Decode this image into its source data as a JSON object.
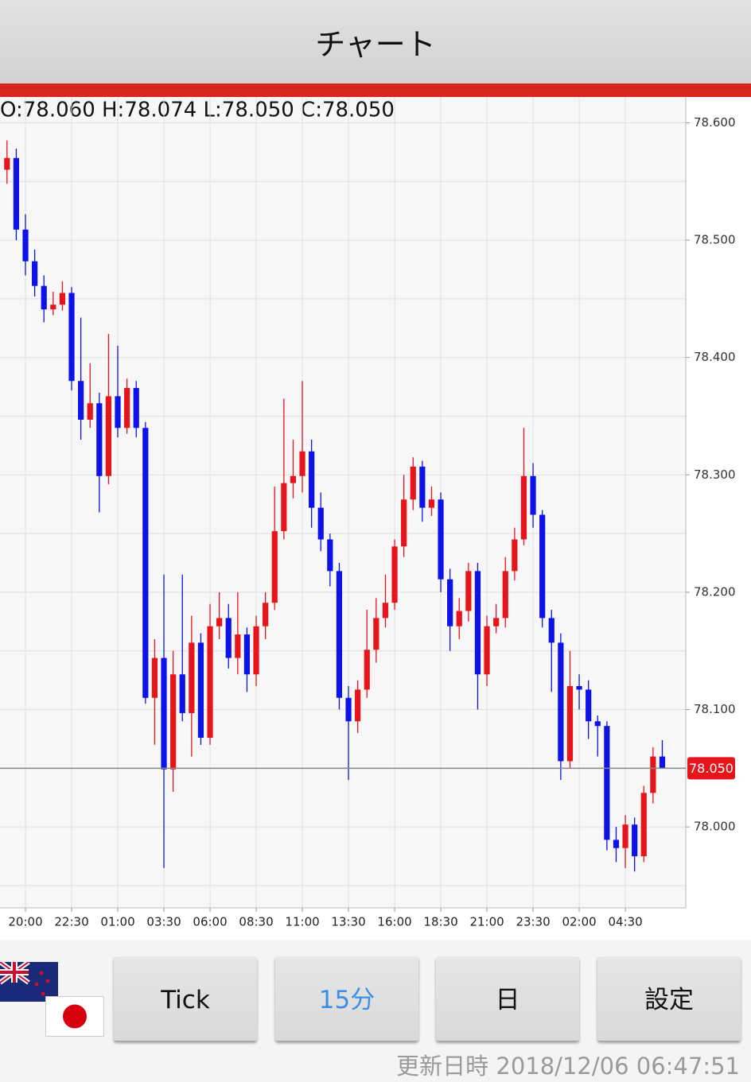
{
  "header": {
    "title": "チャート"
  },
  "ohlc_label": "O:78.060 H:78.074 L:78.050 C:78.050",
  "chart_data": {
    "type": "candlestick",
    "open": [
      78.56,
      78.57,
      78.509,
      78.482,
      78.461,
      78.441,
      78.445,
      78.455,
      78.38,
      78.347,
      78.361,
      78.299,
      78.367,
      78.34,
      78.374,
      78.34,
      78.11,
      78.144,
      78.049,
      78.13,
      78.097,
      78.157,
      78.076,
      78.171,
      78.178,
      78.144,
      78.164,
      78.13,
      78.171,
      78.191,
      78.252,
      78.293,
      78.299,
      78.32,
      78.272,
      78.245,
      78.218,
      78.11,
      78.09,
      78.117,
      78.151,
      78.178,
      78.191,
      78.239,
      78.279,
      78.307,
      78.272,
      78.279,
      78.211,
      78.171,
      78.184,
      78.218,
      78.13,
      78.171,
      78.178,
      78.218,
      78.245,
      78.299,
      78.266,
      78.178,
      78.157,
      78.056,
      78.12,
      78.117,
      78.09,
      78.086,
      77.989,
      77.982,
      78.002,
      77.975,
      78.029,
      78.06
    ],
    "high": [
      78.585,
      78.578,
      78.522,
      78.492,
      78.47,
      78.456,
      78.465,
      78.46,
      78.434,
      78.395,
      78.37,
      78.42,
      78.41,
      78.382,
      78.38,
      78.345,
      78.16,
      78.215,
      78.15,
      78.215,
      78.18,
      78.165,
      78.19,
      78.2,
      78.19,
      78.2,
      78.17,
      78.18,
      78.2,
      78.29,
      78.365,
      78.33,
      78.38,
      78.33,
      78.285,
      78.25,
      78.225,
      78.12,
      78.125,
      78.185,
      78.195,
      78.215,
      78.245,
      78.3,
      78.315,
      78.312,
      78.29,
      78.285,
      78.22,
      78.195,
      78.225,
      78.225,
      78.18,
      78.19,
      78.23,
      78.255,
      78.34,
      78.31,
      78.27,
      78.185,
      78.165,
      78.15,
      78.13,
      78.125,
      78.095,
      78.09,
      78.0,
      78.01,
      78.008,
      78.035,
      78.068,
      78.074
    ],
    "low": [
      78.548,
      78.5,
      78.47,
      78.452,
      78.43,
      78.436,
      78.44,
      78.372,
      78.33,
      78.34,
      78.268,
      78.292,
      78.332,
      78.335,
      78.332,
      78.105,
      78.07,
      77.965,
      78.03,
      78.09,
      78.06,
      78.07,
      78.07,
      78.16,
      78.135,
      78.13,
      78.115,
      78.12,
      78.16,
      78.185,
      78.245,
      78.28,
      78.285,
      78.255,
      78.235,
      78.205,
      78.1,
      78.04,
      78.08,
      78.11,
      78.14,
      78.17,
      78.185,
      78.23,
      78.27,
      78.26,
      78.265,
      78.2,
      78.15,
      78.16,
      78.175,
      78.1,
      78.12,
      78.165,
      78.17,
      78.21,
      78.24,
      78.255,
      78.17,
      78.115,
      78.04,
      78.05,
      78.1,
      78.075,
      78.06,
      77.98,
      77.97,
      77.965,
      77.962,
      77.97,
      78.02,
      78.05
    ],
    "close": [
      78.57,
      78.509,
      78.482,
      78.461,
      78.441,
      78.445,
      78.455,
      78.38,
      78.347,
      78.361,
      78.299,
      78.367,
      78.34,
      78.374,
      78.34,
      78.11,
      78.144,
      78.049,
      78.13,
      78.097,
      78.157,
      78.076,
      78.171,
      78.178,
      78.144,
      78.164,
      78.13,
      78.171,
      78.191,
      78.252,
      78.293,
      78.299,
      78.32,
      78.272,
      78.245,
      78.218,
      78.11,
      78.09,
      78.117,
      78.151,
      78.178,
      78.191,
      78.239,
      78.279,
      78.307,
      78.272,
      78.279,
      78.211,
      78.171,
      78.184,
      78.218,
      78.13,
      78.171,
      78.178,
      78.218,
      78.245,
      78.299,
      78.266,
      78.178,
      78.157,
      78.056,
      78.12,
      78.117,
      78.09,
      78.086,
      77.989,
      77.982,
      78.002,
      77.975,
      78.029,
      78.06,
      78.05
    ],
    "up_color": "#e8141c",
    "down_color": "#0c12e8",
    "xlim": [
      -0.76,
      72.08
    ],
    "xticks": [
      {
        "value": 2,
        "label": "20:00"
      },
      {
        "value": 7,
        "label": "22:30"
      },
      {
        "value": 12,
        "label": "01:00"
      },
      {
        "value": 17,
        "label": "03:30"
      },
      {
        "value": 22,
        "label": "06:00"
      },
      {
        "value": 27,
        "label": "08:30"
      },
      {
        "value": 32,
        "label": "11:00"
      },
      {
        "value": 37,
        "label": "13:30"
      },
      {
        "value": 42,
        "label": "16:00"
      },
      {
        "value": 47,
        "label": "18:30"
      },
      {
        "value": 52,
        "label": "21:00"
      },
      {
        "value": 57,
        "label": "23:30"
      },
      {
        "value": 62,
        "label": "02:00"
      },
      {
        "value": 67,
        "label": "04:30"
      }
    ],
    "ylim": [
      77.931,
      78.622
    ],
    "yticks": [
      {
        "value": 78.0,
        "label": "78.000"
      },
      {
        "value": 78.1,
        "label": "78.100"
      },
      {
        "value": 78.2,
        "label": "78.200"
      },
      {
        "value": 78.3,
        "label": "78.300"
      },
      {
        "value": 78.4,
        "label": "78.400"
      },
      {
        "value": 78.5,
        "label": "78.500"
      },
      {
        "value": 78.6,
        "label": "78.600"
      }
    ],
    "yminorticks": [
      77.95,
      78.05,
      78.15,
      78.25,
      78.35,
      78.45,
      78.55
    ],
    "grid": true,
    "last_price": {
      "value": 78.05,
      "label": "78.050"
    }
  },
  "buttons": [
    "Tick",
    "15分",
    "日",
    "設定"
  ],
  "selected_button": 1,
  "updated_label": "更新日時",
  "updated_at": "2018/12/06 06:47:51"
}
